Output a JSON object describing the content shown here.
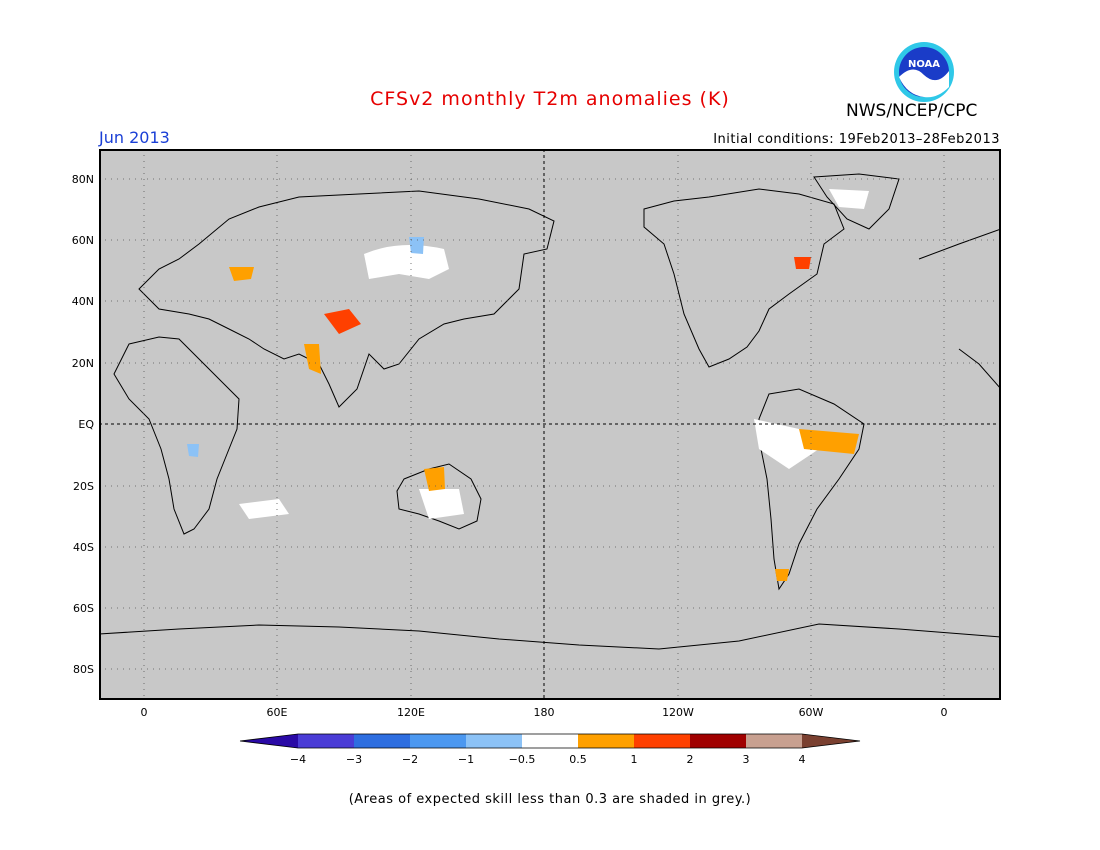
{
  "header": {
    "title": "CFSv2 monthly T2m anomalies (K)",
    "period": "Jun 2013",
    "agency": "NWS/NCEP/CPC",
    "initial_conditions": "Initial conditions: 19Feb2013–28Feb2013",
    "logo_text": "NOAA"
  },
  "map": {
    "lat_labels": [
      "80N",
      "60N",
      "40N",
      "20N",
      "EQ",
      "20S",
      "40S",
      "60S",
      "80S"
    ],
    "lon_labels": [
      "0",
      "60E",
      "120E",
      "180",
      "120W",
      "60W",
      "0"
    ],
    "background_color": "#c8c8c8"
  },
  "colorbar": {
    "labels": [
      "−4",
      "−3",
      "−2",
      "−1",
      "−0.5",
      "0.5",
      "1",
      "2",
      "3",
      "4"
    ],
    "colors": [
      "#2a0aa6",
      "#4a3cd6",
      "#2e6ee0",
      "#4c98f0",
      "#8cc2f6",
      "#ffffff",
      "#ffa000",
      "#ff4000",
      "#a00000",
      "#c8a090",
      "#7a4030"
    ]
  },
  "footer": {
    "note": "(Areas of expected skill less than 0.3 are shaded in grey.)"
  }
}
